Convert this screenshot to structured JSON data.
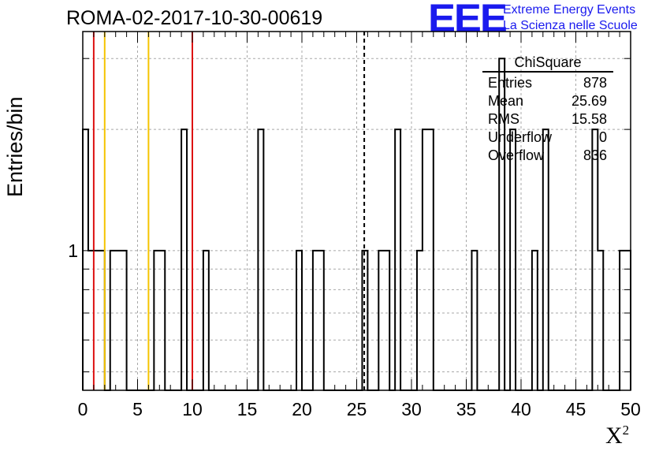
{
  "title": "ROMA-02-2017-10-30-00619",
  "logo": {
    "text": "EEE",
    "line1": "Extreme Energy Events",
    "line2": "La Scienza nelle Scuole",
    "color": "#1a1aee"
  },
  "stats": {
    "name": "ChiSquare",
    "rows": [
      {
        "label": "Entries",
        "value": "878"
      },
      {
        "label": "Mean",
        "value": "25.69"
      },
      {
        "label": "RMS",
        "value": "15.58"
      },
      {
        "label": "Underflow",
        "value": "0"
      },
      {
        "label": "Overflow",
        "value": "836"
      }
    ]
  },
  "chart_data": {
    "type": "bar",
    "title": "ROMA-02-2017-10-30-00619",
    "xlabel": "X",
    "xlabel_sup": "2",
    "ylabel": "Entries/bin",
    "xlim": [
      0,
      50
    ],
    "ylim": [
      0.45,
      3.5
    ],
    "ylog": true,
    "grid": true,
    "xticks": [
      0,
      5,
      10,
      15,
      20,
      25,
      30,
      35,
      40,
      45,
      50
    ],
    "yticks": [
      1
    ],
    "bin_width": 0.5,
    "bins": [
      {
        "x": 0.0,
        "y": 2
      },
      {
        "x": 0.5,
        "y": 1
      },
      {
        "x": 1.0,
        "y": 1
      },
      {
        "x": 1.5,
        "y": 1
      },
      {
        "x": 2.5,
        "y": 1
      },
      {
        "x": 3.0,
        "y": 1
      },
      {
        "x": 3.5,
        "y": 1
      },
      {
        "x": 6.5,
        "y": 1
      },
      {
        "x": 7.0,
        "y": 1
      },
      {
        "x": 9.0,
        "y": 2
      },
      {
        "x": 11.0,
        "y": 1
      },
      {
        "x": 16.0,
        "y": 2
      },
      {
        "x": 19.5,
        "y": 1
      },
      {
        "x": 21.0,
        "y": 1
      },
      {
        "x": 21.5,
        "y": 1
      },
      {
        "x": 25.5,
        "y": 1
      },
      {
        "x": 27.0,
        "y": 1
      },
      {
        "x": 27.5,
        "y": 1
      },
      {
        "x": 28.5,
        "y": 2
      },
      {
        "x": 30.5,
        "y": 1
      },
      {
        "x": 31.0,
        "y": 2
      },
      {
        "x": 31.5,
        "y": 2
      },
      {
        "x": 35.5,
        "y": 1
      },
      {
        "x": 38.0,
        "y": 3
      },
      {
        "x": 39.0,
        "y": 2
      },
      {
        "x": 41.0,
        "y": 1
      },
      {
        "x": 42.0,
        "y": 2
      },
      {
        "x": 46.5,
        "y": 2
      },
      {
        "x": 47.0,
        "y": 1
      },
      {
        "x": 49.0,
        "y": 1
      },
      {
        "x": 49.5,
        "y": 1
      }
    ],
    "vlines": [
      {
        "x": 1.0,
        "color": "#dd1111"
      },
      {
        "x": 2.0,
        "color": "#f5c400"
      },
      {
        "x": 6.0,
        "color": "#f5c400"
      },
      {
        "x": 10.0,
        "color": "#dd1111"
      },
      {
        "x": 25.69,
        "color": "#000000",
        "dashed": true
      }
    ]
  }
}
